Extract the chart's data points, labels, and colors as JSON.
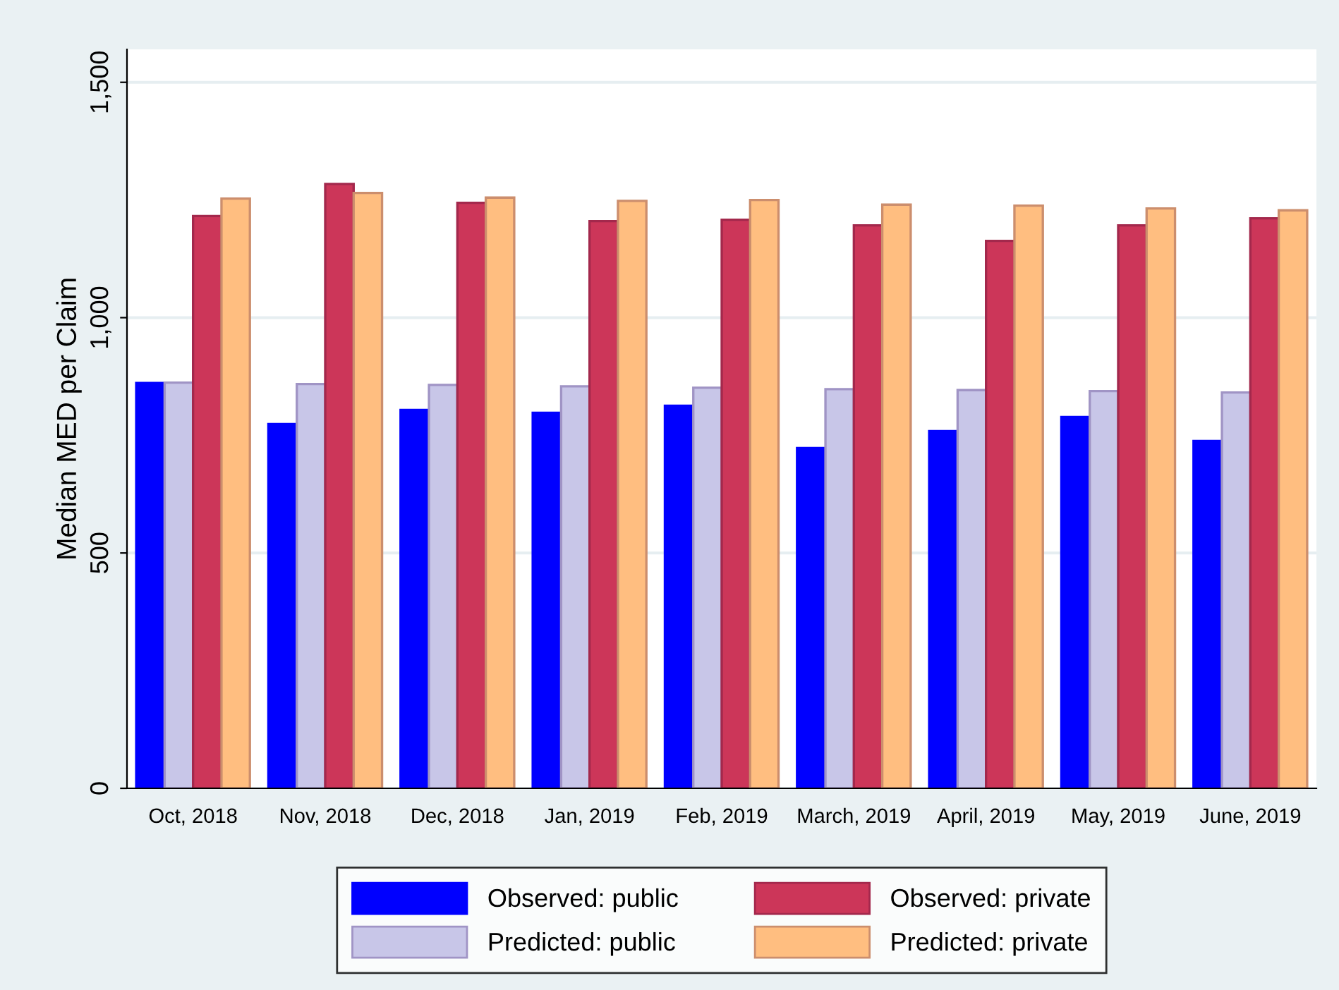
{
  "chart_data": {
    "type": "bar",
    "ylabel": "Median MED per Claim",
    "categories": [
      "Oct, 2018",
      "Nov, 2018",
      "Dec, 2018",
      "Jan, 2019",
      "Feb, 2019",
      "March, 2019",
      "April, 2019",
      "May, 2019",
      "June, 2019"
    ],
    "series": [
      {
        "name": "Observed: public",
        "color": "#0000ff",
        "values": [
          861,
          774,
          804,
          798,
          813,
          723,
          759,
          789,
          738
        ]
      },
      {
        "name": "Predicted: public",
        "color": "#c8c6e8",
        "values": [
          862,
          859,
          857,
          854,
          851,
          848,
          846,
          844,
          841
        ]
      },
      {
        "name": "Observed: private",
        "color": "#cc3659",
        "values": [
          1216,
          1284,
          1244,
          1205,
          1208,
          1196,
          1163,
          1196,
          1211
        ]
      },
      {
        "name": "Predicted: private",
        "color": "#ffbe80",
        "values": [
          1253,
          1265,
          1255,
          1248,
          1250,
          1240,
          1238,
          1232,
          1228
        ]
      }
    ],
    "ylim": [
      0,
      1570
    ],
    "yticks": [
      0,
      {
        "value": 500,
        "label": "500"
      },
      {
        "value": 1000,
        "label": "1,000"
      },
      {
        "value": 1500,
        "label": "1,500"
      }
    ],
    "grid": "y",
    "legend": "bottom"
  }
}
